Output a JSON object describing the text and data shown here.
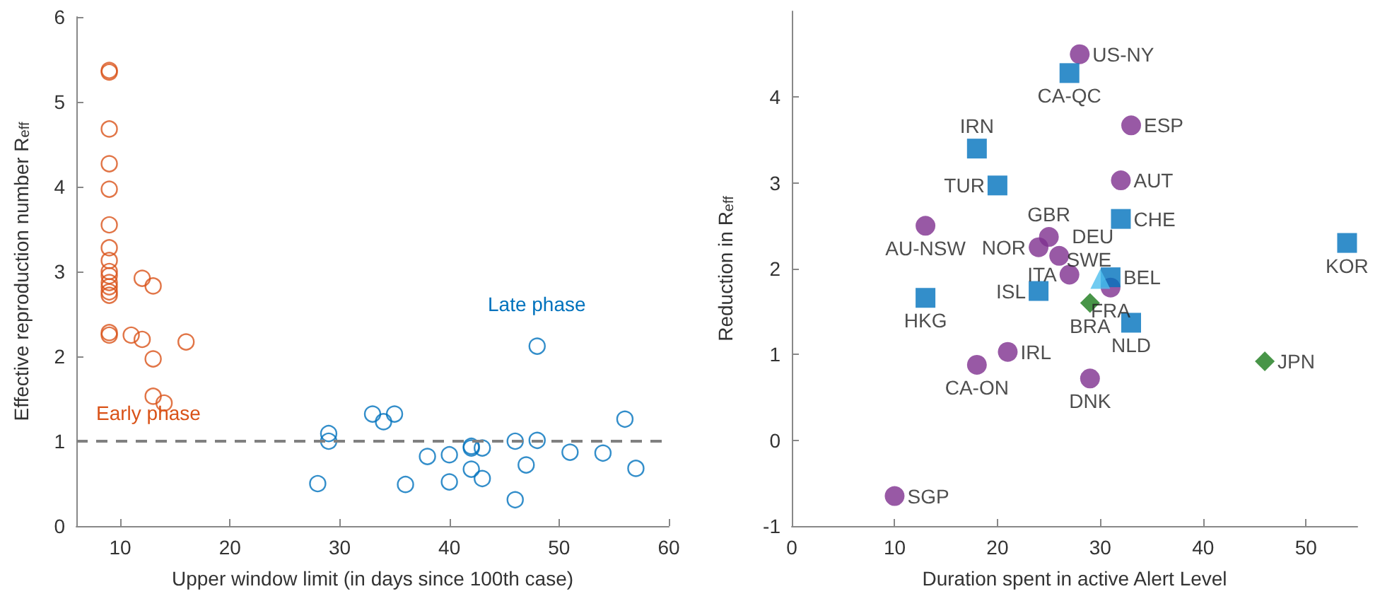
{
  "chart_data": [
    {
      "type": "scatter",
      "xlabel": "Upper window limit (in days since 100th case)",
      "ylabel": "Effective reproduction number R$_{eff}$",
      "xlim": [
        6,
        60
      ],
      "xticks": [
        10,
        20,
        30,
        40,
        50,
        60
      ],
      "ylim": [
        0,
        6
      ],
      "yticks": [
        0,
        1,
        2,
        3,
        4,
        5,
        6
      ],
      "grid": false,
      "marker": "circle",
      "series": [
        {
          "color": "#d95319",
          "x": [
            9,
            9,
            9,
            9,
            9,
            9,
            9,
            9,
            9,
            9,
            9,
            9,
            9,
            9,
            9,
            9,
            11,
            12,
            12,
            13,
            13,
            13,
            14,
            16
          ],
          "values": [
            5.37,
            5.35,
            4.68,
            4.27,
            3.97,
            3.55,
            3.28,
            3.13,
            3.0,
            2.95,
            2.87,
            2.82,
            2.76,
            2.72,
            2.28,
            2.25,
            2.25,
            2.92,
            2.2,
            2.83,
            1.97,
            1.53,
            1.45,
            2.17
          ]
        },
        {
          "color": "#0072bd",
          "x": [
            28,
            29,
            29,
            33,
            34,
            35,
            36,
            38,
            40,
            40,
            42,
            42,
            43,
            42,
            43,
            46,
            46,
            47,
            48,
            48,
            51,
            54,
            56,
            57
          ],
          "values": [
            0.5,
            1.09,
            1.0,
            1.32,
            1.23,
            1.32,
            0.49,
            0.82,
            0.84,
            0.52,
            0.94,
            0.92,
            0.92,
            0.67,
            0.56,
            1.0,
            0.31,
            0.72,
            1.01,
            2.12,
            0.87,
            0.86,
            1.26,
            0.68
          ]
        }
      ],
      "ref_lines": [
        {
          "axis": "y",
          "value": 1,
          "color": "#808080",
          "line_style": "dashed"
        }
      ],
      "annotations": [
        "Early phase",
        "Late phase"
      ]
    },
    {
      "type": "scatter",
      "xlabel": "Duration spent in active Alert Level",
      "ylabel": "Reduction in R$_{eff}$",
      "xlim": [
        0,
        55
      ],
      "xticks": [
        0,
        10,
        20,
        30,
        40,
        50
      ],
      "ylim": [
        -1,
        5
      ],
      "yticks": [
        -1,
        0,
        1,
        2,
        3,
        4
      ],
      "grid": false,
      "series": [
        {
          "color": "#7e2f8e",
          "marker": "circle",
          "x": [
            28,
            33,
            32,
            13,
            25,
            24,
            26,
            27,
            31,
            21,
            18,
            29,
            10
          ],
          "values": [
            4.5,
            3.67,
            3.03,
            2.5,
            2.37,
            2.25,
            2.15,
            1.93,
            1.78,
            1.03,
            0.88,
            0.72,
            -0.65
          ],
          "value_labels": [
            "US-NY",
            "ESP",
            "AUT",
            "AU-NSW",
            "GBR",
            "NOR",
            "DEU",
            "ITA",
            "FRA",
            "IRL",
            "CA-ON",
            "DNK",
            "SGP"
          ]
        },
        {
          "color": "#0072bd",
          "marker": "square",
          "x": [
            27,
            18,
            20,
            32,
            54,
            13,
            24,
            31,
            33
          ],
          "values": [
            4.28,
            3.4,
            2.97,
            2.58,
            2.3,
            1.66,
            1.74,
            1.9,
            1.37
          ],
          "value_labels": [
            "CA-QC",
            "IRN",
            "TUR",
            "CHE",
            "KOR",
            "HKG",
            "ISL",
            "BEL",
            "NLD"
          ]
        },
        {
          "color": "#4dbeee",
          "marker": "triangle",
          "x": [
            30
          ],
          "values": [
            1.88
          ],
          "value_labels": [
            "SWE"
          ]
        },
        {
          "color": "#1a7a1a",
          "marker": "diamond",
          "x": [
            29,
            46
          ],
          "values": [
            1.6,
            0.92
          ],
          "value_labels": [
            "BRA",
            "JPN"
          ]
        }
      ]
    }
  ]
}
